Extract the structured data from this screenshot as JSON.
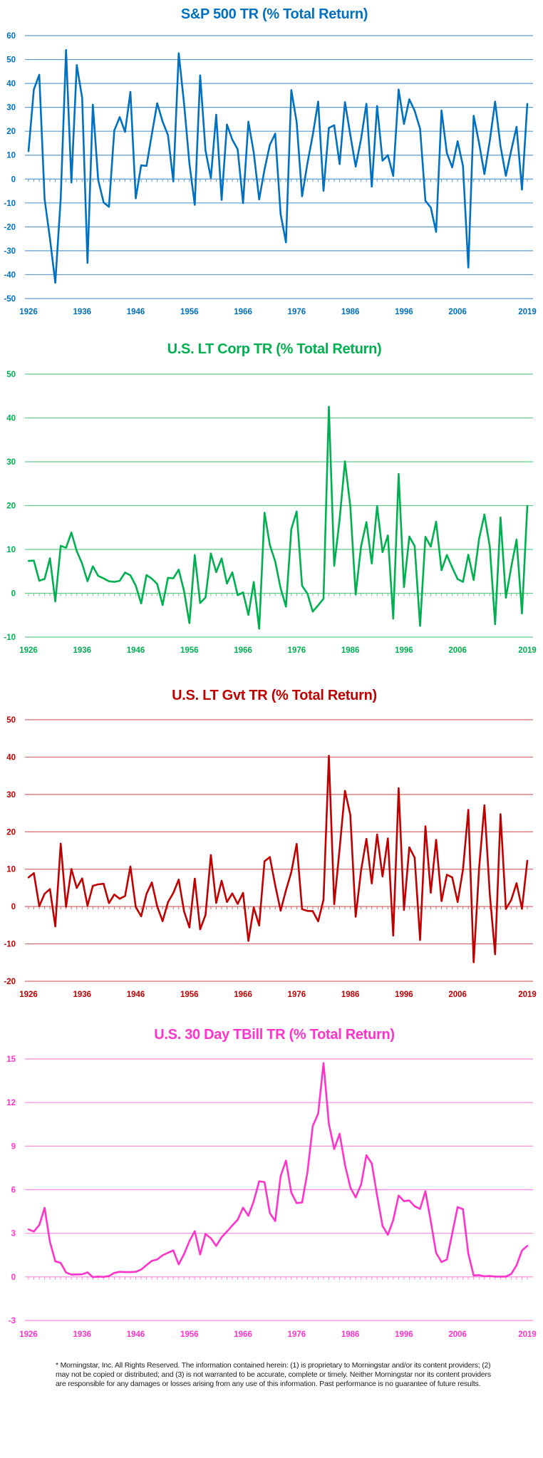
{
  "x_tick_labels": [
    "1926",
    "1936",
    "1946",
    "1956",
    "1966",
    "1976",
    "1986",
    "1996",
    "2006",
    "2019"
  ],
  "footnote": "* Morningstar, Inc. All Rights Reserved. The information contained herein: (1) is proprietary to Morningstar and/or its content providers; (2) may not be copied or distributed; and (3) is not warranted to be accurate, complete or timely. Neither Morningstar nor its content providers are responsible for any damages or losses arising from any use of this information. Past performance is no guarantee of future results.",
  "chart_data": [
    {
      "type": "line",
      "title": "S&P 500 TR (% Total Return)",
      "color": "#0070c0",
      "grid_color": "#5b9bd5",
      "grid": true,
      "x_start": 1926,
      "x_end": 2019,
      "ylim": [
        -50,
        60
      ],
      "yticks": [
        60,
        50,
        40,
        30,
        20,
        10,
        0,
        -10,
        -20,
        -30,
        -40,
        -50
      ],
      "values": [
        11.62,
        37.49,
        43.61,
        -8.42,
        -24.9,
        -43.34,
        -8.19,
        53.99,
        -1.44,
        47.67,
        33.92,
        -35.03,
        31.12,
        -0.41,
        -9.78,
        -11.59,
        20.34,
        25.9,
        19.75,
        36.44,
        -8.07,
        5.71,
        5.5,
        18.79,
        31.71,
        24.02,
        18.37,
        -0.99,
        52.62,
        31.56,
        6.56,
        -10.78,
        43.36,
        11.96,
        0.47,
        26.89,
        -8.73,
        22.8,
        16.48,
        12.45,
        -10.06,
        23.98,
        11.06,
        -8.5,
        4.01,
        14.31,
        18.98,
        -14.66,
        -26.47,
        37.2,
        23.84,
        -7.18,
        6.56,
        18.44,
        32.42,
        -4.91,
        21.41,
        22.51,
        6.27,
        32.16,
        18.47,
        5.23,
        16.81,
        31.49,
        -3.17,
        30.55,
        7.67,
        9.99,
        1.31,
        37.43,
        23.07,
        33.36,
        28.58,
        21.04,
        -9.1,
        -11.89,
        -22.1,
        28.68,
        10.88,
        4.91,
        15.79,
        5.49,
        -37.0,
        26.46,
        15.06,
        2.11,
        16.0,
        32.39,
        13.69,
        1.38,
        11.96,
        21.83,
        -4.38,
        31.49
      ]
    },
    {
      "type": "line",
      "title": "U.S. LT Corp TR (% Total Return)",
      "color": "#00b050",
      "grid_color": "#66cc8a",
      "grid": true,
      "x_start": 1926,
      "x_end": 2019,
      "ylim": [
        -10,
        50
      ],
      "yticks": [
        50,
        40,
        30,
        20,
        10,
        0,
        -10
      ],
      "values": [
        7.37,
        7.44,
        2.84,
        3.27,
        7.98,
        -1.85,
        10.82,
        10.38,
        13.84,
        9.61,
        6.74,
        2.75,
        6.13,
        3.97,
        3.39,
        2.73,
        2.6,
        2.83,
        4.73,
        4.08,
        1.72,
        -2.34,
        4.14,
        3.31,
        2.12,
        -2.69,
        3.52,
        3.41,
        5.39,
        0.48,
        -6.81,
        8.71,
        -2.22,
        -0.97,
        9.07,
        4.82,
        7.95,
        2.19,
        4.77,
        -0.46,
        0.2,
        -4.95,
        2.57,
        -8.09,
        18.37,
        11.01,
        7.26,
        1.14,
        -3.06,
        14.64,
        18.65,
        1.71,
        -0.07,
        -4.18,
        -2.76,
        -1.24,
        42.56,
        6.26,
        16.86,
        30.09,
        19.85,
        -0.27,
        10.7,
        16.23,
        6.78,
        19.89,
        9.39,
        13.19,
        -5.76,
        27.2,
        1.4,
        12.95,
        10.76,
        -7.45,
        12.87,
        10.65,
        16.33,
        5.27,
        8.72,
        5.87,
        3.24,
        2.6,
        8.78,
        3.02,
        12.44,
        17.95,
        10.68,
        -7.07,
        17.28,
        -1.02,
        5.95,
        12.24,
        -4.6,
        19.95
      ]
    },
    {
      "type": "line",
      "title": "U.S. LT Gvt TR (% Total Return)",
      "color": "#c00000",
      "grid_color": "#d46a6a",
      "grid": true,
      "x_start": 1926,
      "x_end": 2019,
      "ylim": [
        -20,
        50
      ],
      "yticks": [
        50,
        40,
        30,
        20,
        10,
        0,
        -10,
        -20
      ],
      "values": [
        7.77,
        8.93,
        0.1,
        3.42,
        4.66,
        -5.31,
        16.84,
        -0.07,
        10.03,
        4.98,
        7.52,
        0.23,
        5.53,
        5.94,
        6.09,
        0.93,
        3.22,
        2.08,
        2.81,
        10.73,
        -0.1,
        -2.62,
        3.4,
        6.45,
        0.06,
        -3.93,
        1.16,
        3.64,
        7.19,
        -1.29,
        -5.59,
        7.46,
        -6.09,
        -2.26,
        13.78,
        0.97,
        6.89,
        1.21,
        3.51,
        0.71,
        3.65,
        -9.18,
        -0.26,
        -5.07,
        12.11,
        13.23,
        5.69,
        -1.11,
        4.35,
        9.2,
        16.75,
        -0.69,
        -1.18,
        -1.23,
        -3.95,
        1.86,
        40.36,
        0.65,
        15.48,
        30.97,
        24.53,
        -2.71,
        9.67,
        18.11,
        6.18,
        19.3,
        8.05,
        18.24,
        -7.77,
        31.67,
        -0.93,
        15.85,
        13.06,
        -8.96,
        21.48,
        3.7,
        17.84,
        1.45,
        8.51,
        7.81,
        1.19,
        9.88,
        25.87,
        -14.9,
        10.14,
        27.1,
        3.43,
        -12.78,
        24.71,
        -0.65,
        1.75,
        6.24,
        -0.6,
        12.3
      ]
    },
    {
      "type": "line",
      "title": "U.S. 30 Day TBill TR (% Total Return)",
      "color": "#ff33cc",
      "grid_color": "#ff88e0",
      "grid": true,
      "x_start": 1926,
      "x_end": 2019,
      "ylim": [
        -3,
        15
      ],
      "yticks": [
        15,
        12,
        9,
        6,
        3,
        0,
        -3
      ],
      "values": [
        3.27,
        3.12,
        3.56,
        4.75,
        2.41,
        1.07,
        0.96,
        0.3,
        0.16,
        0.17,
        0.18,
        0.31,
        -0.02,
        0.02,
        0.0,
        0.06,
        0.27,
        0.35,
        0.33,
        0.33,
        0.35,
        0.5,
        0.81,
        1.1,
        1.2,
        1.49,
        1.66,
        1.82,
        0.86,
        1.57,
        2.46,
        3.14,
        1.54,
        2.95,
        2.66,
        2.13,
        2.73,
        3.12,
        3.54,
        3.93,
        4.76,
        4.21,
        5.21,
        6.58,
        6.52,
        4.39,
        3.84,
        6.93,
        8.0,
        5.8,
        5.08,
        5.12,
        7.18,
        10.38,
        11.24,
        14.71,
        10.54,
        8.8,
        9.85,
        7.72,
        6.16,
        5.47,
        6.35,
        8.37,
        7.81,
        5.6,
        3.51,
        2.9,
        3.9,
        5.6,
        5.21,
        5.26,
        4.86,
        4.68,
        5.89,
        3.83,
        1.65,
        1.02,
        1.2,
        2.98,
        4.8,
        4.66,
        1.6,
        0.1,
        0.12,
        0.04,
        0.06,
        0.02,
        0.02,
        0.02,
        0.2,
        0.8,
        1.81,
        2.14
      ]
    }
  ]
}
